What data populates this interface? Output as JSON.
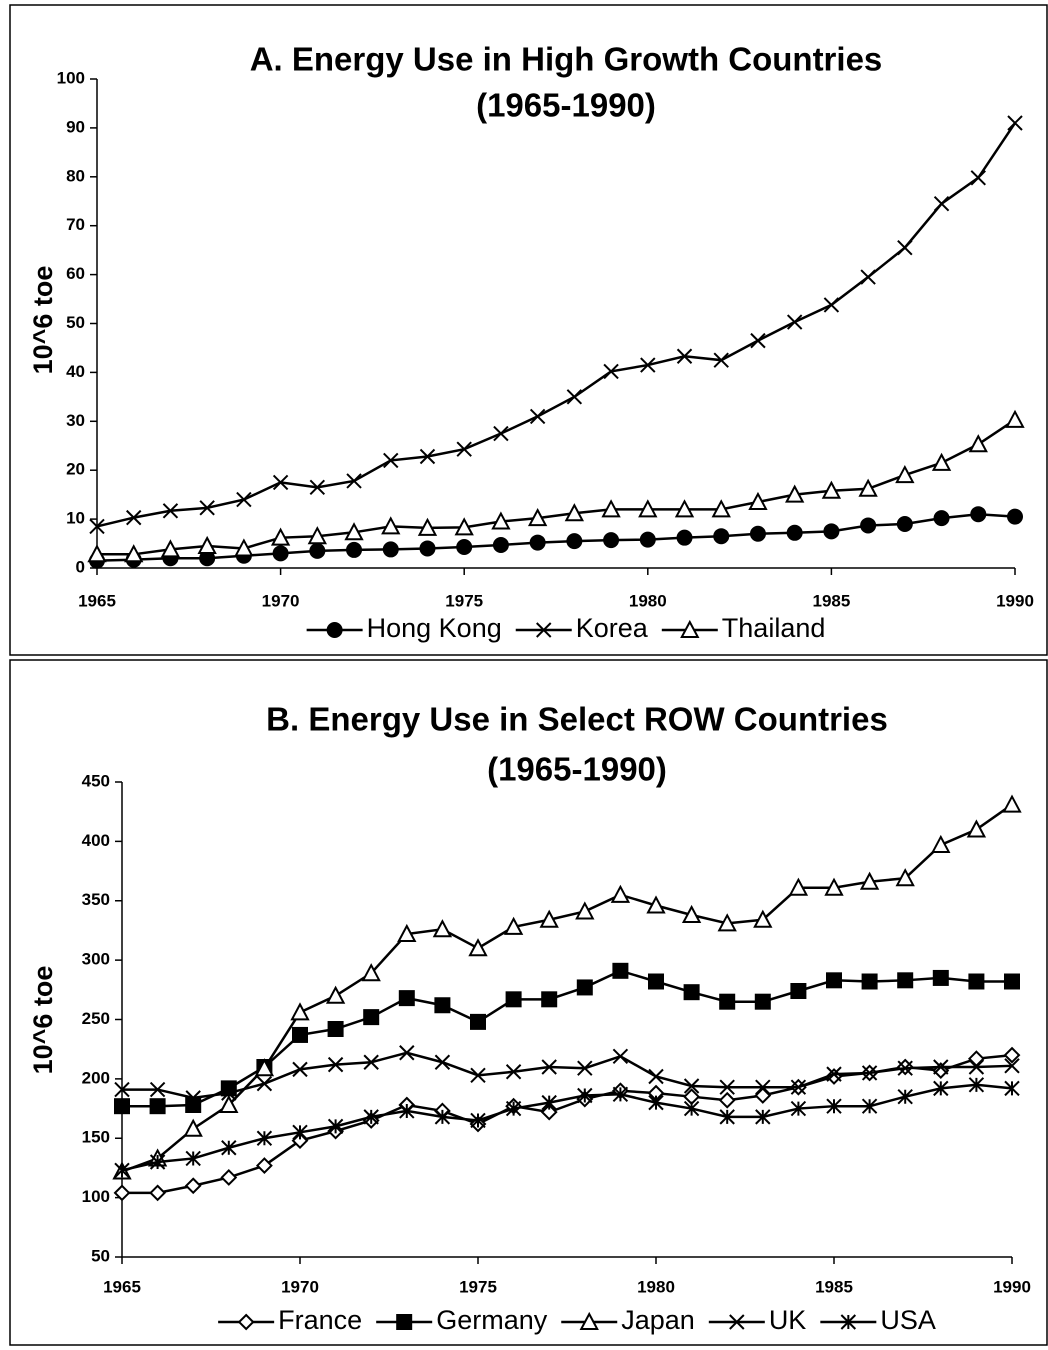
{
  "chart_data": [
    {
      "type": "line",
      "title": "A. Energy Use in High Growth Countries",
      "subtitle": "(1965-1990)",
      "ylabel": "10^6 toe",
      "x": [
        1965,
        1966,
        1967,
        1968,
        1969,
        1970,
        1971,
        1972,
        1973,
        1974,
        1975,
        1976,
        1977,
        1978,
        1979,
        1980,
        1981,
        1982,
        1983,
        1984,
        1985,
        1986,
        1987,
        1988,
        1989,
        1990
      ],
      "xlim": [
        1965,
        1990
      ],
      "xticks": [
        1965,
        1970,
        1975,
        1980,
        1985,
        1990
      ],
      "ylim": [
        0,
        100
      ],
      "yticks": [
        0,
        10,
        20,
        30,
        40,
        50,
        60,
        70,
        80,
        90,
        100
      ],
      "series": [
        {
          "name": "Hong Kong",
          "color": "#000000",
          "marker": "circle",
          "values": [
            1.5,
            1.7,
            2,
            2,
            2.5,
            3,
            3.5,
            3.7,
            3.8,
            4,
            4.3,
            4.7,
            5.2,
            5.5,
            5.7,
            5.8,
            6.2,
            6.5,
            7,
            7.2,
            7.5,
            8.7,
            9,
            10.2,
            11,
            10.5
          ]
        },
        {
          "name": "Korea",
          "color": "#000000",
          "marker": "x",
          "values": [
            8.5,
            10.3,
            11.7,
            12.3,
            14,
            17.5,
            16.5,
            17.8,
            22,
            22.8,
            24.3,
            27.5,
            31,
            35,
            40.2,
            41.5,
            43.3,
            42.5,
            46.5,
            50.3,
            53.8,
            59.5,
            65.5,
            74.5,
            79.8,
            91
          ]
        },
        {
          "name": "Thailand",
          "color": "#000000",
          "marker": "triangle",
          "values": [
            2.8,
            2.8,
            3.8,
            4.5,
            4,
            6.2,
            6.5,
            7.3,
            8.5,
            8.2,
            8.3,
            9.5,
            10.2,
            11.2,
            12,
            12,
            12,
            12,
            13.5,
            15,
            15.8,
            16.2,
            19,
            21.5,
            25.3,
            30.3
          ]
        }
      ]
    },
    {
      "type": "line",
      "title": "B.  Energy Use in Select ROW Countries",
      "subtitle": "(1965-1990)",
      "ylabel": "10^6 toe",
      "x": [
        1965,
        1966,
        1967,
        1968,
        1969,
        1970,
        1971,
        1972,
        1973,
        1974,
        1975,
        1976,
        1977,
        1978,
        1979,
        1980,
        1981,
        1982,
        1983,
        1984,
        1985,
        1986,
        1987,
        1988,
        1989,
        1990
      ],
      "xlim": [
        1965,
        1990
      ],
      "xticks": [
        1965,
        1970,
        1975,
        1980,
        1985,
        1990
      ],
      "ylim": [
        50,
        450
      ],
      "yticks": [
        50,
        100,
        150,
        200,
        250,
        300,
        350,
        400,
        450
      ],
      "series": [
        {
          "name": "France",
          "color": "#000000",
          "marker": "diamond",
          "values": [
            104,
            104,
            110,
            117,
            127,
            148,
            156,
            165,
            178,
            173,
            162,
            177,
            172,
            183,
            190,
            188,
            185,
            182,
            186,
            193,
            202,
            205,
            210,
            207,
            217,
            220
          ]
        },
        {
          "name": "Germany",
          "color": "#000000",
          "marker": "square",
          "values": [
            177,
            177,
            178,
            192,
            210,
            237,
            242,
            252,
            268,
            262,
            248,
            267,
            267,
            277,
            291,
            282,
            273,
            265,
            265,
            274,
            283,
            282,
            283,
            285,
            282,
            282
          ]
        },
        {
          "name": "Japan",
          "color": "#000000",
          "marker": "triangle",
          "values": [
            122,
            133,
            158,
            178,
            209,
            256,
            270,
            289,
            322,
            326,
            310,
            328,
            334,
            341,
            355,
            346,
            338,
            331,
            334,
            361,
            361,
            366,
            369,
            397,
            410,
            431
          ]
        },
        {
          "name": "UK",
          "color": "#000000",
          "marker": "x",
          "values": [
            191,
            191,
            184,
            188,
            196,
            208,
            212,
            214,
            222,
            214,
            203,
            206,
            210,
            209,
            219,
            202,
            194,
            193,
            193,
            193,
            204,
            205,
            209,
            210,
            210,
            211
          ]
        },
        {
          "name": "USA",
          "color": "#000000",
          "marker": "star",
          "values": [
            123,
            130,
            133,
            142,
            150,
            155,
            160,
            168,
            173,
            168,
            165,
            175,
            180,
            186,
            187,
            180,
            175,
            168,
            168,
            175,
            177,
            177,
            185,
            192,
            195,
            192
          ]
        }
      ]
    }
  ]
}
